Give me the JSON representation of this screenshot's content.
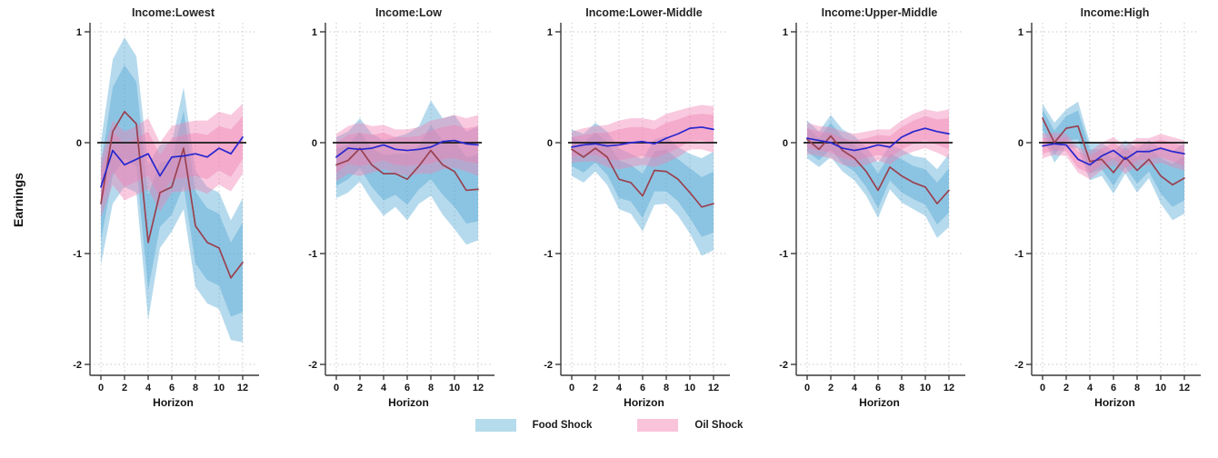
{
  "chart_data": {
    "type": "line",
    "ylabel": "Earnings",
    "xlabel": "Horizon",
    "x": [
      0,
      1,
      2,
      3,
      4,
      5,
      6,
      7,
      8,
      9,
      10,
      11,
      12
    ],
    "x_ticks": [
      0,
      2,
      4,
      6,
      8,
      10,
      12
    ],
    "y_ticks": [
      1,
      0,
      -1,
      -2
    ],
    "ylim": [
      -2.1,
      1.1
    ],
    "xlim": [
      0,
      12
    ],
    "grid": "dotted vertical at even horizons, dotted horizontal at y ticks, solid black zero line",
    "legend_position": "bottom-center",
    "legend": [
      {
        "label": "Food Shock",
        "color": "#b5dcec"
      },
      {
        "label": "Oil Shock",
        "color": "#f9c3da"
      }
    ],
    "style": {
      "food_band_fill": "rgba(80,168,212,0.42)",
      "oil_band_fill": "rgba(240,128,178,0.42)",
      "food_line_color": "#9a4150",
      "oil_line_color": "#2727cf",
      "zero_line_color": "#1a1a1a",
      "axis_color": "#3a3a3a",
      "grid_color": "#c9c9c9"
    },
    "panels": [
      {
        "title": "Income:Lowest",
        "food_shock": {
          "line": [
            -0.55,
            0.1,
            0.28,
            0.17,
            -0.9,
            -0.45,
            -0.4,
            -0.05,
            -0.75,
            -0.9,
            -0.95,
            -1.22,
            -1.08
          ],
          "inner_hi": [
            -0.21,
            0.5,
            0.7,
            0.55,
            -0.47,
            -0.18,
            -0.15,
            0.29,
            -0.44,
            -0.59,
            -0.64,
            -0.9,
            -0.72
          ],
          "inner_lo": [
            -0.89,
            -0.3,
            -0.14,
            -0.21,
            -1.33,
            -0.76,
            -0.65,
            -0.39,
            -1.09,
            -1.24,
            -1.29,
            -1.57,
            -1.53
          ],
          "outer_hi": [
            0.0,
            0.75,
            0.95,
            0.78,
            -0.2,
            -0.02,
            0.0,
            0.5,
            -0.25,
            -0.4,
            -0.45,
            -0.7,
            -0.5
          ],
          "outer_lo": [
            -1.1,
            -0.55,
            -0.4,
            -0.45,
            -1.6,
            -0.95,
            -0.8,
            -0.6,
            -1.3,
            -1.45,
            -1.5,
            -1.78,
            -1.8
          ]
        },
        "oil_shock": {
          "line": [
            -0.4,
            -0.07,
            -0.2,
            -0.15,
            -0.1,
            -0.3,
            -0.13,
            -0.12,
            -0.1,
            -0.13,
            -0.05,
            -0.1,
            0.05
          ],
          "inner_hi": [
            -0.25,
            0.1,
            -0.01,
            0.04,
            0.1,
            -0.11,
            0.04,
            0.07,
            0.09,
            0.07,
            0.15,
            0.12,
            0.24
          ],
          "inner_lo": [
            -0.57,
            -0.26,
            -0.4,
            -0.35,
            -0.3,
            -0.5,
            -0.33,
            -0.32,
            -0.3,
            -0.33,
            -0.25,
            -0.31,
            -0.15
          ],
          "outer_hi": [
            -0.15,
            0.2,
            0.1,
            0.15,
            0.22,
            0.0,
            0.15,
            0.18,
            0.2,
            0.2,
            0.28,
            0.25,
            0.35
          ],
          "outer_lo": [
            -0.68,
            -0.38,
            -0.52,
            -0.47,
            -0.42,
            -0.62,
            -0.45,
            -0.44,
            -0.42,
            -0.46,
            -0.38,
            -0.44,
            -0.28
          ]
        }
      },
      {
        "title": "Income:Low",
        "food_shock": {
          "line": [
            -0.2,
            -0.16,
            -0.05,
            -0.2,
            -0.28,
            -0.28,
            -0.33,
            -0.21,
            -0.07,
            -0.2,
            -0.26,
            -0.43,
            -0.42
          ],
          "inner_hi": [
            -0.05,
            -0.02,
            0.1,
            -0.05,
            -0.11,
            -0.1,
            -0.1,
            -0.03,
            0.16,
            0.02,
            0.02,
            -0.13,
            -0.11
          ],
          "inner_lo": [
            -0.39,
            -0.33,
            -0.23,
            -0.4,
            -0.52,
            -0.47,
            -0.56,
            -0.42,
            -0.33,
            -0.47,
            -0.58,
            -0.73,
            -0.71
          ],
          "outer_hi": [
            0.05,
            0.1,
            0.22,
            0.08,
            0.02,
            0.05,
            0.08,
            0.15,
            0.38,
            0.22,
            0.25,
            0.1,
            0.15
          ],
          "outer_lo": [
            -0.5,
            -0.45,
            -0.35,
            -0.52,
            -0.66,
            -0.58,
            -0.7,
            -0.55,
            -0.48,
            -0.65,
            -0.78,
            -0.92,
            -0.88
          ]
        },
        "oil_shock": {
          "line": [
            -0.13,
            -0.05,
            -0.06,
            -0.05,
            -0.02,
            -0.06,
            -0.07,
            -0.06,
            -0.04,
            0.01,
            0.02,
            -0.01,
            -0.02
          ],
          "inner_hi": [
            0.0,
            0.07,
            0.09,
            0.07,
            0.09,
            0.05,
            0.05,
            0.06,
            0.11,
            0.14,
            0.16,
            0.13,
            0.15
          ],
          "inner_lo": [
            -0.27,
            -0.19,
            -0.21,
            -0.19,
            -0.16,
            -0.2,
            -0.21,
            -0.2,
            -0.19,
            -0.15,
            -0.14,
            -0.17,
            -0.19
          ],
          "outer_hi": [
            0.08,
            0.15,
            0.18,
            0.15,
            0.16,
            0.12,
            0.12,
            0.14,
            0.2,
            0.22,
            0.25,
            0.22,
            0.25
          ],
          "outer_lo": [
            -0.35,
            -0.28,
            -0.3,
            -0.27,
            -0.24,
            -0.28,
            -0.3,
            -0.28,
            -0.28,
            -0.24,
            -0.23,
            -0.26,
            -0.3
          ]
        }
      },
      {
        "title": "Income:Lower-Middle",
        "food_shock": {
          "line": [
            -0.06,
            -0.13,
            -0.05,
            -0.13,
            -0.33,
            -0.36,
            -0.48,
            -0.25,
            -0.26,
            -0.33,
            -0.45,
            -0.58,
            -0.55
          ],
          "inner_hi": [
            0.05,
            0.0,
            0.09,
            0.01,
            -0.16,
            -0.2,
            -0.28,
            -0.08,
            -0.06,
            -0.15,
            -0.23,
            -0.31,
            -0.26
          ],
          "inner_lo": [
            -0.21,
            -0.27,
            -0.18,
            -0.29,
            -0.5,
            -0.53,
            -0.68,
            -0.44,
            -0.44,
            -0.53,
            -0.68,
            -0.85,
            -0.81
          ],
          "outer_hi": [
            0.12,
            0.08,
            0.18,
            0.1,
            -0.05,
            -0.1,
            -0.15,
            0.03,
            0.06,
            -0.04,
            -0.1,
            -0.14,
            -0.08
          ],
          "outer_lo": [
            -0.3,
            -0.36,
            -0.26,
            -0.38,
            -0.6,
            -0.64,
            -0.8,
            -0.56,
            -0.55,
            -0.66,
            -0.82,
            -1.02,
            -0.97
          ]
        },
        "oil_shock": {
          "line": [
            -0.04,
            -0.02,
            -0.01,
            -0.03,
            -0.02,
            0.0,
            0.01,
            -0.01,
            0.04,
            0.08,
            0.13,
            0.14,
            0.12
          ],
          "inner_hi": [
            0.05,
            0.07,
            0.09,
            0.09,
            0.12,
            0.14,
            0.14,
            0.12,
            0.18,
            0.21,
            0.25,
            0.26,
            0.25
          ],
          "inner_lo": [
            -0.13,
            -0.11,
            -0.11,
            -0.15,
            -0.16,
            -0.14,
            -0.12,
            -0.14,
            -0.1,
            -0.05,
            0.01,
            0.02,
            -0.01
          ],
          "outer_hi": [
            0.1,
            0.13,
            0.15,
            0.16,
            0.2,
            0.22,
            0.22,
            0.2,
            0.26,
            0.29,
            0.32,
            0.34,
            0.33
          ],
          "outer_lo": [
            -0.18,
            -0.17,
            -0.17,
            -0.22,
            -0.24,
            -0.22,
            -0.2,
            -0.22,
            -0.18,
            -0.13,
            -0.06,
            -0.06,
            -0.09
          ]
        }
      },
      {
        "title": "Income:Upper-Middle",
        "food_shock": {
          "line": [
            0.03,
            -0.06,
            0.06,
            -0.07,
            -0.14,
            -0.26,
            -0.43,
            -0.22,
            -0.3,
            -0.36,
            -0.4,
            -0.55,
            -0.43
          ],
          "inner_hi": [
            0.14,
            0.04,
            0.18,
            0.05,
            -0.02,
            -0.12,
            -0.28,
            -0.1,
            -0.15,
            -0.21,
            -0.24,
            -0.36,
            -0.23
          ],
          "inner_lo": [
            -0.08,
            -0.16,
            -0.06,
            -0.19,
            -0.26,
            -0.4,
            -0.59,
            -0.34,
            -0.45,
            -0.51,
            -0.56,
            -0.74,
            -0.63
          ],
          "outer_hi": [
            0.2,
            0.1,
            0.25,
            0.12,
            0.06,
            -0.04,
            -0.18,
            -0.02,
            -0.06,
            -0.12,
            -0.14,
            -0.24,
            -0.1
          ],
          "outer_lo": [
            -0.14,
            -0.22,
            -0.13,
            -0.26,
            -0.34,
            -0.48,
            -0.68,
            -0.42,
            -0.54,
            -0.6,
            -0.66,
            -0.86,
            -0.76
          ]
        },
        "oil_shock": {
          "line": [
            0.04,
            0.02,
            0.0,
            -0.05,
            -0.07,
            -0.05,
            -0.02,
            -0.04,
            0.05,
            0.1,
            0.13,
            0.1,
            0.08
          ],
          "inner_hi": [
            0.13,
            0.1,
            0.09,
            0.04,
            0.02,
            0.04,
            0.07,
            0.06,
            0.14,
            0.2,
            0.24,
            0.21,
            0.22
          ],
          "inner_lo": [
            -0.05,
            -0.07,
            -0.09,
            -0.14,
            -0.16,
            -0.14,
            -0.11,
            -0.14,
            -0.06,
            -0.01,
            0.02,
            -0.02,
            -0.06
          ],
          "outer_hi": [
            0.18,
            0.15,
            0.14,
            0.1,
            0.08,
            0.1,
            0.12,
            0.12,
            0.2,
            0.26,
            0.3,
            0.28,
            0.3
          ],
          "outer_lo": [
            -0.1,
            -0.12,
            -0.14,
            -0.2,
            -0.22,
            -0.2,
            -0.16,
            -0.2,
            -0.12,
            -0.08,
            -0.05,
            -0.09,
            -0.14
          ]
        }
      },
      {
        "title": "Income:High",
        "food_shock": {
          "line": [
            0.22,
            0.0,
            0.13,
            0.15,
            -0.17,
            -0.15,
            -0.27,
            -0.13,
            -0.25,
            -0.15,
            -0.3,
            -0.38,
            -0.32
          ],
          "inner_hi": [
            0.3,
            0.11,
            0.24,
            0.29,
            -0.06,
            -0.06,
            -0.15,
            -0.04,
            -0.13,
            -0.04,
            -0.14,
            -0.19,
            -0.12
          ],
          "inner_lo": [
            0.12,
            -0.11,
            0.02,
            0.03,
            -0.28,
            -0.24,
            -0.39,
            -0.22,
            -0.37,
            -0.26,
            -0.46,
            -0.58,
            -0.52
          ],
          "outer_hi": [
            0.35,
            0.18,
            0.3,
            0.37,
            0.0,
            0.0,
            -0.08,
            0.02,
            -0.05,
            0.02,
            -0.05,
            -0.08,
            0.0
          ],
          "outer_lo": [
            0.06,
            -0.18,
            -0.04,
            -0.05,
            -0.34,
            -0.3,
            -0.46,
            -0.28,
            -0.45,
            -0.32,
            -0.55,
            -0.7,
            -0.64
          ]
        },
        "oil_shock": {
          "line": [
            -0.03,
            -0.01,
            -0.02,
            -0.15,
            -0.2,
            -0.12,
            -0.07,
            -0.15,
            -0.08,
            -0.08,
            -0.05,
            -0.08,
            -0.1
          ],
          "inner_hi": [
            0.04,
            0.05,
            0.04,
            -0.08,
            -0.12,
            -0.05,
            0.0,
            -0.07,
            -0.01,
            -0.01,
            0.03,
            0.0,
            -0.03
          ],
          "inner_lo": [
            -0.1,
            -0.07,
            -0.08,
            -0.23,
            -0.28,
            -0.2,
            -0.15,
            -0.23,
            -0.16,
            -0.15,
            -0.13,
            -0.17,
            -0.21
          ],
          "outer_hi": [
            0.08,
            0.09,
            0.08,
            -0.04,
            -0.08,
            0.0,
            0.05,
            -0.03,
            0.04,
            0.04,
            0.08,
            0.05,
            0.02
          ],
          "outer_lo": [
            -0.14,
            -0.11,
            -0.12,
            -0.27,
            -0.33,
            -0.25,
            -0.2,
            -0.28,
            -0.21,
            -0.2,
            -0.18,
            -0.22,
            -0.25
          ]
        }
      }
    ]
  }
}
